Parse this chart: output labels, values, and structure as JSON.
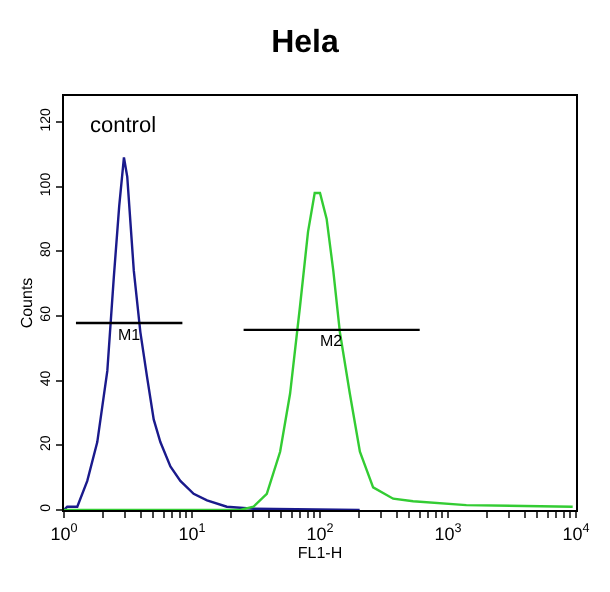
{
  "chart_data": {
    "type": "line",
    "title": "Hela",
    "xlabel": "FL1-H",
    "ylabel": "Counts",
    "log": "x",
    "xlim": [
      1,
      10000
    ],
    "xticks": [
      {
        "value": 1,
        "label": "10$^{0}$"
      },
      {
        "value": 2,
        "label": null
      },
      {
        "value": 3,
        "label": null
      },
      {
        "value": 4,
        "label": null
      },
      {
        "value": 5,
        "label": null
      },
      {
        "value": 6,
        "label": null
      },
      {
        "value": 7,
        "label": null
      },
      {
        "value": 8,
        "label": null
      },
      {
        "value": 9,
        "label": null
      },
      {
        "value": 10,
        "label": "10$^{1}$"
      },
      {
        "value": 20,
        "label": null
      },
      {
        "value": 30,
        "label": null
      },
      {
        "value": 40,
        "label": null
      },
      {
        "value": 50,
        "label": null
      },
      {
        "value": 60,
        "label": null
      },
      {
        "value": 70,
        "label": null
      },
      {
        "value": 80,
        "label": null
      },
      {
        "value": 90,
        "label": null
      },
      {
        "value": 100,
        "label": "10$^{2}$"
      },
      {
        "value": 200,
        "label": null
      },
      {
        "value": 300,
        "label": null
      },
      {
        "value": 400,
        "label": null
      },
      {
        "value": 500,
        "label": null
      },
      {
        "value": 600,
        "label": null
      },
      {
        "value": 700,
        "label": null
      },
      {
        "value": 800,
        "label": null
      },
      {
        "value": 900,
        "label": null
      },
      {
        "value": 1000,
        "label": "10$^{3}$"
      },
      {
        "value": 2000,
        "label": null
      },
      {
        "value": 3000,
        "label": null
      },
      {
        "value": 4000,
        "label": null
      },
      {
        "value": 5000,
        "label": null
      },
      {
        "value": 6000,
        "label": null
      },
      {
        "value": 7000,
        "label": null
      },
      {
        "value": 8000,
        "label": null
      },
      {
        "value": 9000,
        "label": null
      },
      {
        "value": 10000,
        "label": "10$^{4}$"
      }
    ],
    "ylim": [
      0,
      128
    ],
    "yticks": [
      0,
      20,
      40,
      60,
      80,
      100,
      120
    ],
    "grid": false,
    "legend": false,
    "series": [
      {
        "name": "control",
        "color": "#1a1a8c",
        "x": [
          1,
          1.06,
          1.27,
          1.52,
          1.82,
          2.18,
          2.45,
          2.7,
          2.94,
          3.12,
          3.51,
          3.95,
          4.46,
          5.02,
          5.66,
          6.78,
          8.11,
          10.3,
          13.1,
          18.7,
          30.2,
          204
        ],
        "values": [
          0,
          1,
          1,
          9,
          21,
          43,
          72,
          94,
          109,
          103,
          74,
          55,
          41,
          28,
          21,
          13.5,
          9,
          5,
          3,
          1,
          0.4,
          0
        ]
      },
      {
        "color": "#33cc33",
        "x": [
          1,
          23.8,
          30.2,
          38.4,
          48.8,
          58.4,
          69.8,
          80.6,
          90.9,
          100,
          112.7,
          127,
          143,
          171,
          205,
          260,
          373,
          534,
          1390,
          9420
        ],
        "values": [
          0,
          0,
          1,
          5,
          18,
          36,
          63,
          86,
          98,
          98,
          90,
          74,
          55,
          36,
          18,
          7,
          3.5,
          2.7,
          1.5,
          1
        ]
      },
      {
        "name": "M1",
        "color": "#000000",
        "x": [
          1.24,
          8.41
        ],
        "values": [
          57.8,
          57.8
        ]
      },
      {
        "name": "M2",
        "color": "#000000",
        "x": [
          25.3,
          601
        ],
        "values": [
          55.7,
          55.7
        ]
      }
    ]
  }
}
